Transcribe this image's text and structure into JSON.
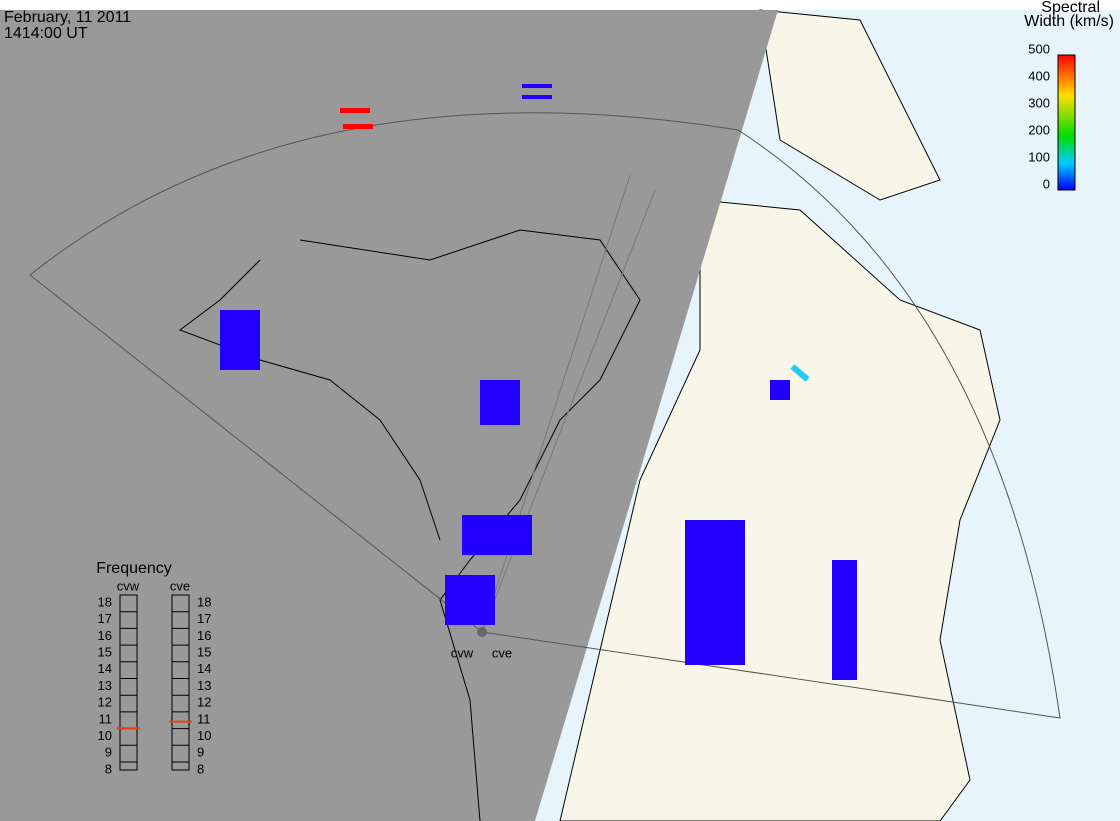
{
  "header": {
    "date": "February, 11 2011",
    "time": "1414:00 UT"
  },
  "colorbar": {
    "title_lines": [
      "Spectral",
      "Width (km/s)"
    ],
    "ticks": [
      0,
      100,
      200,
      300,
      400,
      500
    ],
    "range": [
      0,
      500
    ]
  },
  "frequency": {
    "title": "Frequency",
    "range": [
      8,
      18
    ],
    "ticks": [
      8,
      9,
      10,
      11,
      12,
      13,
      14,
      15,
      16,
      17,
      18
    ],
    "radars": [
      {
        "name": "cvw",
        "value": 10.5
      },
      {
        "name": "cve",
        "value": 10.9
      }
    ]
  },
  "sites": [
    "cvw",
    "cve"
  ]
}
